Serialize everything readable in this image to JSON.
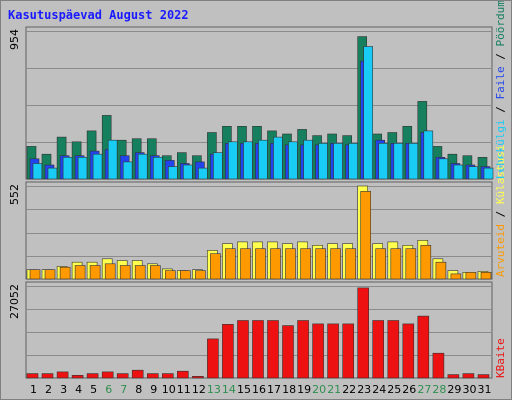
{
  "chart_data": {
    "title": "Kasutuspäevad August 2022",
    "type": "bar",
    "x": [
      "1",
      "2",
      "3",
      "4",
      "5",
      "6",
      "7",
      "8",
      "9",
      "10",
      "11",
      "12",
      "13",
      "14",
      "15",
      "16",
      "17",
      "18",
      "19",
      "20",
      "21",
      "22",
      "23",
      "24",
      "25",
      "26",
      "27",
      "28",
      "29",
      "30",
      "31"
    ],
    "weekend_days": [
      "6",
      "7",
      "13",
      "14",
      "20",
      "21",
      "27",
      "28"
    ],
    "panels": [
      {
        "ymax_label": "954",
        "ylim": [
          0,
          954
        ],
        "series": [
          {
            "name": "Pöördumisi",
            "color": "#157f5e",
            "values": [
              210,
              160,
              270,
              240,
              310,
              410,
              250,
              260,
              260,
              150,
              170,
              150,
              300,
              340,
              340,
              340,
              310,
              290,
              320,
              280,
              290,
              280,
              918,
              290,
              300,
              340,
              500,
              210,
              160,
              150,
              140
            ]
          },
          {
            "name": "Faile",
            "color": "#2244ee",
            "values": [
              130,
              90,
              150,
              150,
              180,
              190,
              150,
              170,
              150,
              120,
              100,
              110,
              160,
              230,
              230,
              230,
              230,
              220,
              220,
              220,
              230,
              220,
              760,
              250,
              230,
              230,
              300,
              140,
              100,
              90,
              80
            ]
          },
          {
            "name": "Lehekülgi",
            "color": "#19ccf5",
            "values": [
              100,
              70,
              140,
              140,
              160,
              250,
              110,
              160,
              140,
              80,
              90,
              70,
              170,
              240,
              240,
              250,
              270,
              240,
              250,
              230,
              230,
              230,
              854,
              230,
              230,
              230,
              310,
              130,
              90,
              80,
              70
            ]
          }
        ]
      },
      {
        "ymax_label": "552",
        "ylim": [
          0,
          552
        ],
        "series": [
          {
            "name": "Külastusi",
            "color": "#ffff4d",
            "values": [
              55,
              55,
              75,
              100,
              100,
              120,
              110,
              110,
              90,
              60,
              50,
              55,
              170,
              210,
              220,
              220,
              220,
              210,
              220,
              200,
              210,
              210,
              552,
              210,
              220,
              200,
              230,
              120,
              50,
              40,
              45
            ]
          },
          {
            "name": "Arvuteid",
            "color": "#ff9900",
            "values": [
              55,
              55,
              70,
              80,
              80,
              90,
              80,
              80,
              80,
              50,
              50,
              50,
              150,
              180,
              180,
              180,
              180,
              180,
              180,
              180,
              180,
              180,
              520,
              180,
              180,
              180,
              200,
              100,
              30,
              40,
              40
            ]
          }
        ]
      },
      {
        "ymax_label": "27052",
        "ylim": [
          0,
          27052
        ],
        "series": [
          {
            "name": "KBaite",
            "color": "#ee1111",
            "values": [
              1300,
              1300,
              1800,
              800,
              1300,
              1800,
              1300,
              2300,
              1300,
              1300,
              2000,
              500,
              11500,
              15800,
              16900,
              16900,
              16900,
              15400,
              16900,
              15900,
              15900,
              15900,
              26500,
              16900,
              16900,
              15900,
              18200,
              7300,
              1000,
              1300,
              1000
            ]
          }
        ]
      }
    ]
  },
  "colors": {
    "title": "#1a1aff",
    "weekday_tick": "#000000",
    "weekend_tick": "#2f8f4f",
    "panel_bg": "#c0c0c0",
    "grid": "#8c8c8c",
    "separator": "#606060"
  }
}
